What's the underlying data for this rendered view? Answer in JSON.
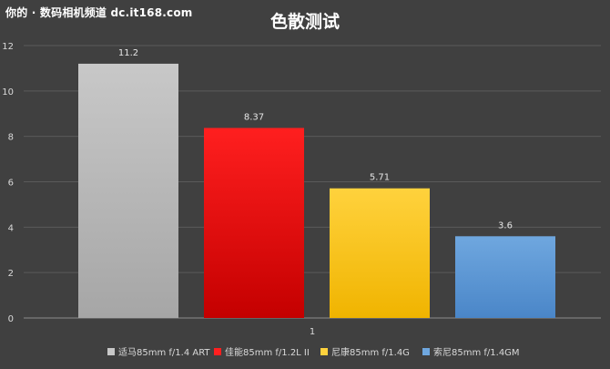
{
  "watermark": "你的 · 数码相机频道 dc.it168.com",
  "chart_data": {
    "type": "bar",
    "title": "色散测试",
    "categories": [
      "1"
    ],
    "ylim": [
      0,
      12
    ],
    "yticks": [
      "0",
      "2",
      "4",
      "6",
      "8",
      "10",
      "12"
    ],
    "grid": true,
    "legend_position": "bottom",
    "series": [
      {
        "name": "适马85mm f/1.4 ART",
        "values": [
          11.2
        ],
        "label": "11.2",
        "color": "#c8c8c8",
        "color_dark": "#a6a6a6"
      },
      {
        "name": "佳能85mm f/1.2L II",
        "values": [
          8.37
        ],
        "label": "8.37",
        "color": "#ff1f1f",
        "color_dark": "#c40000"
      },
      {
        "name": "尼康85mm f/1.4G",
        "values": [
          5.71
        ],
        "label": "5.71",
        "color": "#ffd23d",
        "color_dark": "#f0b400"
      },
      {
        "name": "索尼85mm f/1.4GM",
        "values": [
          3.6
        ],
        "label": "3.6",
        "color": "#6fa7df",
        "color_dark": "#4a86c8"
      }
    ]
  }
}
